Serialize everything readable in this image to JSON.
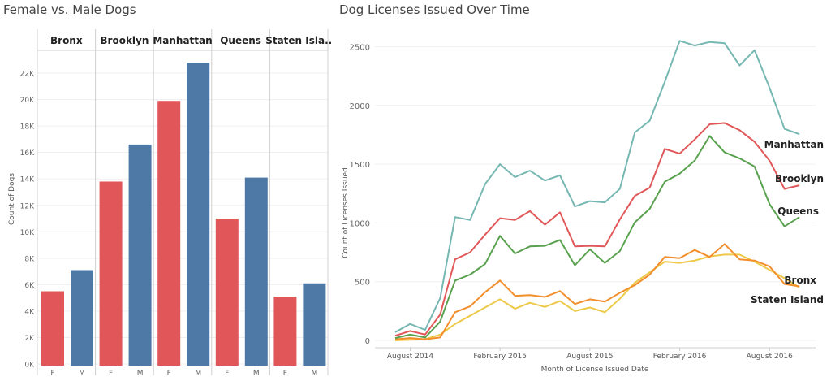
{
  "left_chart": {
    "title": "Female vs. Male Dogs",
    "ylabel": "Count of Dogs",
    "y_ticks": [
      0,
      2000,
      4000,
      6000,
      8000,
      10000,
      12000,
      14000,
      16000,
      18000,
      20000,
      22000
    ],
    "y_tick_labels": [
      "0K",
      "2K",
      "4K",
      "6K",
      "8K",
      "10K",
      "12K",
      "14K",
      "16K",
      "18K",
      "20K",
      "22K"
    ],
    "panels": [
      "Bronx",
      "Brooklyn",
      "Manhattan",
      "Queens",
      "Staten Isla.."
    ],
    "x_labels": [
      "F",
      "M"
    ],
    "colors": {
      "F": "#e15759",
      "M": "#4e79a7"
    }
  },
  "right_chart": {
    "title": "Dog Licenses Issued Over Time",
    "ylabel": "Count of Licenses Issued",
    "xlabel": "Month of License Issued Date",
    "y_ticks": [
      0,
      500,
      1000,
      1500,
      2000,
      2500
    ],
    "y_tick_labels": [
      "0",
      "500",
      "1000",
      "1500",
      "2000",
      "2500"
    ],
    "x_tick_labels": [
      "August 2014",
      "February 2015",
      "August 2015",
      "February 2016",
      "August 2016"
    ]
  },
  "chart_data": [
    {
      "type": "bar",
      "title": "Female vs. Male Dogs",
      "ylabel": "Count of Dogs",
      "ylim": [
        0,
        23000
      ],
      "categories": [
        "Bronx",
        "Brooklyn",
        "Manhattan",
        "Queens",
        "Staten Isla.."
      ],
      "series": [
        {
          "name": "F",
          "color": "#e15759",
          "values": [
            5500,
            13800,
            19900,
            11000,
            5100
          ]
        },
        {
          "name": "M",
          "color": "#4e79a7",
          "values": [
            7100,
            16600,
            22800,
            14100,
            6100
          ]
        }
      ],
      "grid": true
    },
    {
      "type": "line",
      "title": "Dog Licenses Issued Over Time",
      "xlabel": "Month of License Issued Date",
      "ylabel": "Count of Licenses Issued",
      "x": [
        "2014-07",
        "2014-08",
        "2014-09",
        "2014-10",
        "2014-11",
        "2014-12",
        "2015-01",
        "2015-02",
        "2015-03",
        "2015-04",
        "2015-05",
        "2015-06",
        "2015-07",
        "2015-08",
        "2015-09",
        "2015-10",
        "2015-11",
        "2015-12",
        "2016-01",
        "2016-02",
        "2016-03",
        "2016-04",
        "2016-05",
        "2016-06",
        "2016-07",
        "2016-08",
        "2016-09",
        "2016-10",
        "2016-11",
        "2016-12"
      ],
      "ylim": [
        -30,
        2650
      ],
      "grid": true,
      "series": [
        {
          "name": "Manhattan",
          "color": "#76b7b2",
          "values": [
            70,
            140,
            90,
            360,
            1050,
            1025,
            1330,
            1500,
            1390,
            1445,
            1360,
            1405,
            1140,
            1185,
            1175,
            1290,
            1770,
            1870,
            2200,
            2550,
            2510,
            2540,
            2530,
            2340,
            2470,
            2150,
            1800,
            1755,
            null,
            null
          ]
        },
        {
          "name": "Brooklyn",
          "color": "#e15759",
          "values": [
            40,
            80,
            50,
            220,
            690,
            750,
            900,
            1040,
            1025,
            1100,
            985,
            1090,
            800,
            805,
            800,
            1030,
            1230,
            1300,
            1630,
            1590,
            1710,
            1840,
            1850,
            1790,
            1690,
            1530,
            1290,
            1320,
            null,
            null
          ]
        },
        {
          "name": "Queens",
          "color": "#59a14f",
          "values": [
            20,
            50,
            25,
            160,
            510,
            560,
            650,
            890,
            740,
            800,
            805,
            855,
            640,
            775,
            660,
            760,
            1005,
            1120,
            1350,
            1420,
            1530,
            1740,
            1600,
            1550,
            1480,
            1160,
            970,
            1050,
            null,
            null
          ]
        },
        {
          "name": "Bronx",
          "color": "#f28e2b",
          "values": [
            10,
            20,
            10,
            25,
            240,
            290,
            410,
            510,
            380,
            385,
            370,
            420,
            310,
            350,
            330,
            405,
            470,
            560,
            710,
            700,
            770,
            710,
            820,
            690,
            680,
            630,
            480,
            460,
            null,
            null
          ]
        },
        {
          "name": "Staten Island",
          "color": "#edc948",
          "values": [
            0,
            5,
            10,
            50,
            140,
            210,
            280,
            350,
            270,
            320,
            285,
            335,
            250,
            280,
            240,
            355,
            490,
            580,
            670,
            660,
            680,
            715,
            730,
            730,
            670,
            600,
            530,
            450,
            null,
            null
          ]
        }
      ]
    }
  ]
}
